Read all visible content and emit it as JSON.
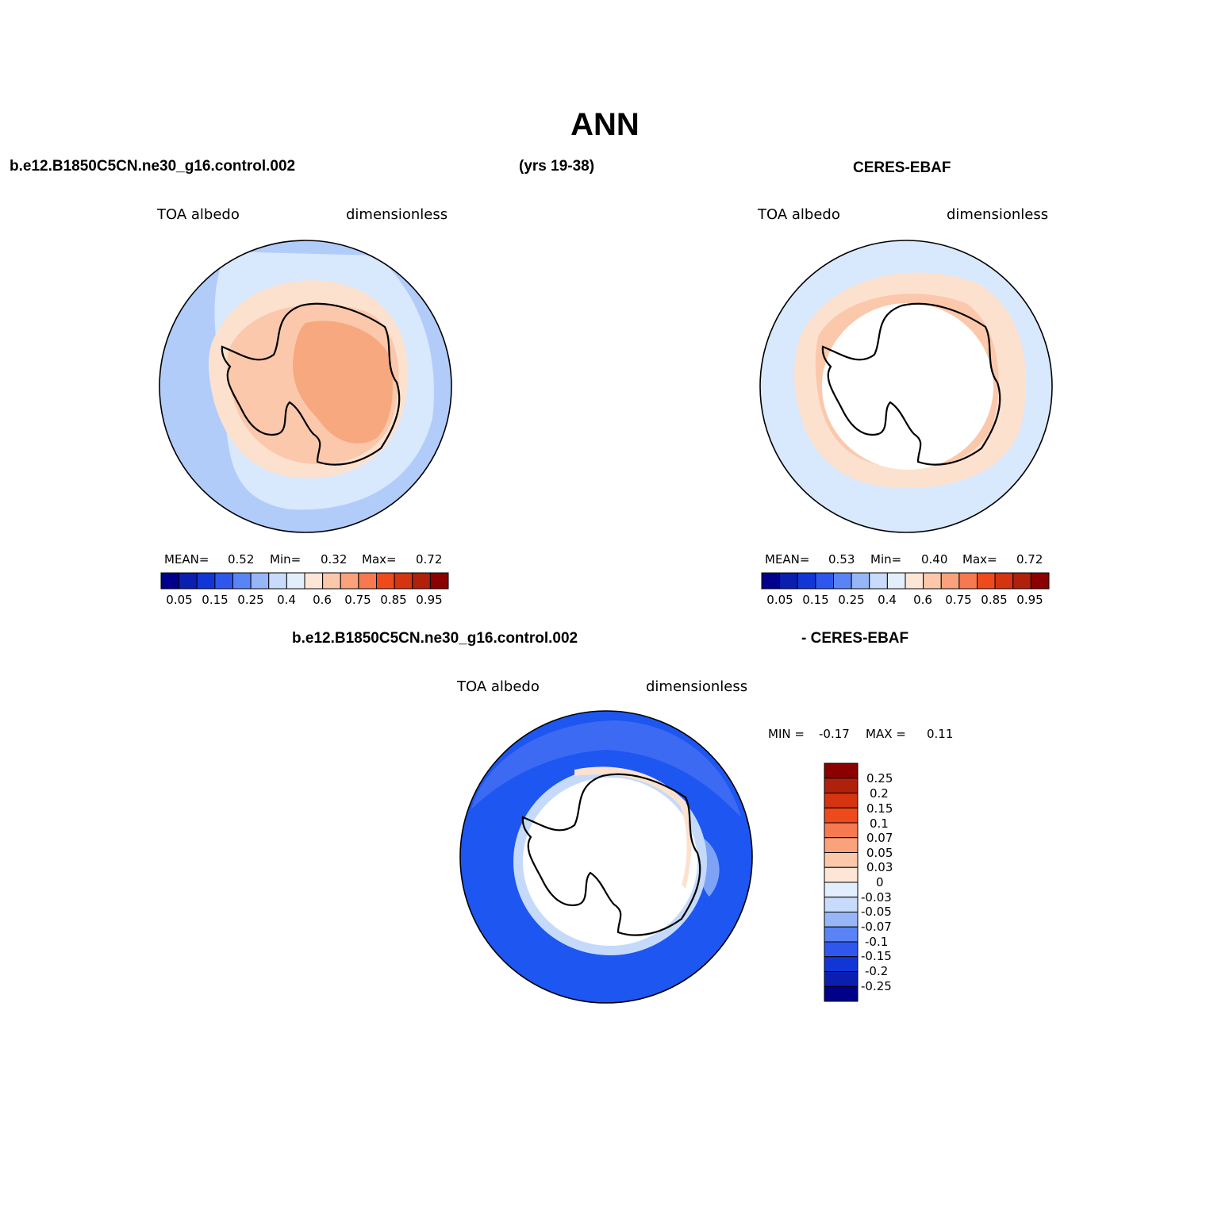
{
  "title": "ANN",
  "header": {
    "case": "b.e12.B1850C5CN.ne30_g16.control.002",
    "years": "(yrs 19-38)",
    "obs": "CERES-EBAF"
  },
  "panels": [
    {
      "id": "model",
      "variable": "TOA albedo",
      "units": "dimensionless",
      "stats": {
        "mean_label": "MEAN=",
        "mean": "0.52",
        "min_label": "Min=",
        "min": "0.32",
        "max_label": "Max=",
        "max": "0.72"
      }
    },
    {
      "id": "obs",
      "variable": "TOA albedo",
      "units": "dimensionless",
      "stats": {
        "mean_label": "MEAN=",
        "mean": "0.53",
        "min_label": "Min=",
        "min": "0.40",
        "max_label": "Max=",
        "max": "0.72"
      }
    }
  ],
  "diff": {
    "title_left": "b.e12.B1850C5CN.ne30_g16.control.002",
    "title_right": "- CERES-EBAF",
    "variable": "TOA albedo",
    "units": "dimensionless",
    "min_label": "MIN =",
    "min": "-0.17",
    "max_label": "MAX =",
    "max": "0.11"
  },
  "colorbar_main": {
    "colors": [
      "#00008b",
      "#0a1fb0",
      "#1236d6",
      "#2f57ee",
      "#5a84f5",
      "#97b6f8",
      "#c8dbfb",
      "#e3eefd",
      "#fde6d6",
      "#fcc8aa",
      "#f9a27c",
      "#f6794f",
      "#ee4a1c",
      "#d43410",
      "#b0210b",
      "#8b0000"
    ],
    "labels": [
      "0.05",
      "0.15",
      "0.25",
      "0.4",
      "0.6",
      "0.75",
      "0.85",
      "0.95"
    ]
  },
  "colorbar_diff": {
    "colors": [
      "#8b0000",
      "#b0210b",
      "#d43410",
      "#ee4a1c",
      "#f6794f",
      "#f9a27c",
      "#fcc8aa",
      "#fde6d6",
      "#e3eefd",
      "#c8dbfb",
      "#97b6f8",
      "#5a84f5",
      "#2f57ee",
      "#1236d6",
      "#0a1fb0",
      "#00008b"
    ],
    "labels": [
      "0.25",
      "0.2",
      "0.15",
      "0.1",
      "0.07",
      "0.05",
      "0.03",
      "0",
      "-0.03",
      "-0.05",
      "-0.07",
      "-0.1",
      "-0.15",
      "-0.2",
      "-0.25"
    ]
  },
  "map_colors": {
    "ocean_outer": "#b2ccfa",
    "ocean_mid": "#d8e8fd",
    "ice_light": "#fde1cf",
    "ice_mid": "#fbc8ac",
    "ice_high": "#f8a87e",
    "diff_blue": "#1d56f0",
    "diff_blue_mid": "#3c6af3",
    "diff_blue_light": "#7ea3f6",
    "diff_ring": "#c5dafa",
    "land_outline": "#000000"
  }
}
